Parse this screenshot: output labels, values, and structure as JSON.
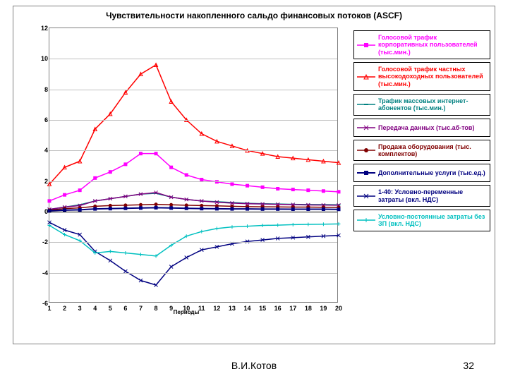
{
  "chart": {
    "title": "Чувствительности накопленного сальдо финансовых потоков (ASCF)",
    "title_fontsize": 12,
    "xlabel": "Периоды",
    "xlabel_fontsize": 8,
    "background_color": "#ffffff",
    "border_color": "#808080",
    "grid_color": "#c0c0c0",
    "axis_fontsize": 9,
    "x": [
      1,
      2,
      3,
      4,
      5,
      6,
      7,
      8,
      9,
      10,
      11,
      12,
      13,
      14,
      15,
      16,
      17,
      18,
      19,
      20
    ],
    "xlim": [
      1,
      20
    ],
    "ylim": [
      -6,
      12
    ],
    "ytick_step": 2,
    "yticks": [
      -6,
      -4,
      -2,
      0,
      2,
      4,
      6,
      8,
      10,
      12
    ],
    "series": [
      {
        "name": "Голосовой трафик корпоративных пользователей (тыс.мин.)",
        "color": "#ff00ff",
        "marker": "square-filled",
        "line_width": 1.5,
        "values": [
          0.7,
          1.1,
          1.4,
          2.2,
          2.6,
          3.1,
          3.8,
          3.8,
          2.9,
          2.4,
          2.1,
          1.95,
          1.8,
          1.7,
          1.6,
          1.5,
          1.45,
          1.4,
          1.35,
          1.3
        ]
      },
      {
        "name": "Голосовой трафик частных высокодоходных пользователей (тыс.мин.)",
        "color": "#ff0000",
        "marker": "triangle-open",
        "line_width": 1.5,
        "values": [
          1.8,
          2.9,
          3.3,
          5.4,
          6.4,
          7.8,
          9.0,
          9.6,
          7.2,
          6.0,
          5.1,
          4.6,
          4.3,
          4.0,
          3.8,
          3.6,
          3.5,
          3.4,
          3.3,
          3.2
        ]
      },
      {
        "name": "Трафик массовых интернет-абонентов (тыс.мин.)",
        "color": "#008080",
        "marker": "dash",
        "line_width": 1.5,
        "values": [
          0.15,
          0.3,
          0.45,
          0.7,
          0.85,
          1.0,
          1.15,
          1.2,
          0.95,
          0.8,
          0.7,
          0.65,
          0.6,
          0.55,
          0.52,
          0.5,
          0.48,
          0.47,
          0.46,
          0.45
        ]
      },
      {
        "name": "Передача данных (тыс.аб-тов)",
        "color": "#800080",
        "marker": "x",
        "line_width": 1.5,
        "values": [
          0.15,
          0.3,
          0.4,
          0.7,
          0.85,
          1.0,
          1.15,
          1.25,
          0.95,
          0.8,
          0.7,
          0.62,
          0.56,
          0.52,
          0.5,
          0.48,
          0.46,
          0.44,
          0.43,
          0.42
        ]
      },
      {
        "name": "Продажа оборудования (тыс. комплектов)",
        "color": "#800000",
        "marker": "circle-filled",
        "line_width": 1.5,
        "values": [
          0.1,
          0.2,
          0.25,
          0.35,
          0.4,
          0.42,
          0.45,
          0.48,
          0.45,
          0.42,
          0.4,
          0.38,
          0.35,
          0.33,
          0.32,
          0.31,
          0.3,
          0.3,
          0.29,
          0.28
        ]
      },
      {
        "name": "Дополнительные услуги (тыс.ед.)",
        "color": "#000080",
        "marker": "square-filled",
        "line_width": 2,
        "values": [
          0.05,
          0.1,
          0.12,
          0.18,
          0.2,
          0.22,
          0.24,
          0.26,
          0.24,
          0.22,
          0.2,
          0.19,
          0.18,
          0.18,
          0.17,
          0.17,
          0.16,
          0.16,
          0.16,
          0.15
        ]
      },
      {
        "name": "1-40: Условно-переменные затраты (вкл. НДС)",
        "color": "#000080",
        "marker": "x",
        "line_width": 1.5,
        "values": [
          -0.7,
          -1.2,
          -1.5,
          -2.6,
          -3.2,
          -3.9,
          -4.5,
          -4.8,
          -3.6,
          -3.0,
          -2.5,
          -2.3,
          -2.1,
          -1.95,
          -1.85,
          -1.75,
          -1.7,
          -1.65,
          -1.6,
          -1.55
        ]
      },
      {
        "name": "Условно-постоянные затраты без ЗП (вкл. НДС)",
        "color": "#00c0c0",
        "marker": "plus",
        "line_width": 1.5,
        "values": [
          -0.9,
          -1.5,
          -1.9,
          -2.7,
          -2.6,
          -2.7,
          -2.8,
          -2.9,
          -2.2,
          -1.6,
          -1.3,
          -1.1,
          -1.0,
          -0.95,
          -0.9,
          -0.88,
          -0.85,
          -0.83,
          -0.82,
          -0.8
        ]
      }
    ]
  },
  "footer": {
    "author": "В.И.Котов",
    "page": "32"
  }
}
